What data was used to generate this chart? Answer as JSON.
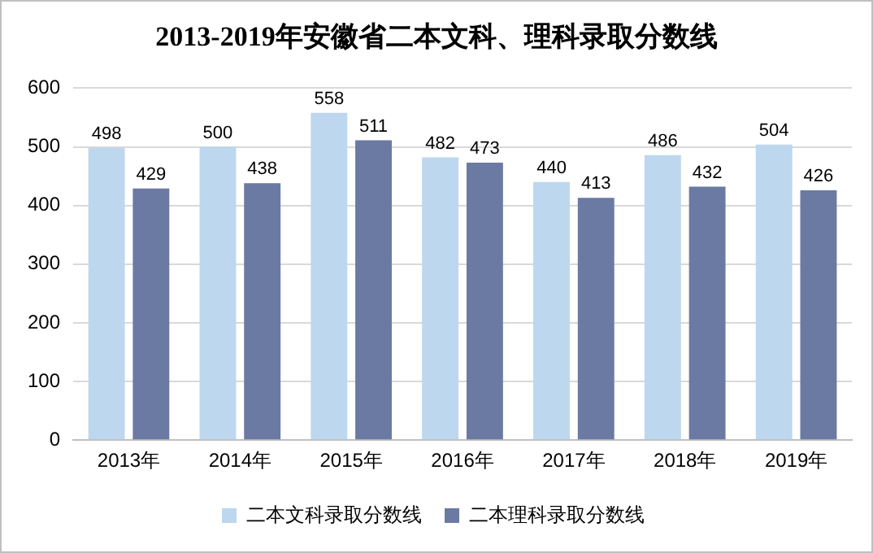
{
  "chart_data": {
    "type": "bar",
    "title": "2013-2019年安徽省二本文科、理科录取分数线",
    "categories": [
      "2013年",
      "2014年",
      "2015年",
      "2016年",
      "2017年",
      "2018年",
      "2019年"
    ],
    "series": [
      {
        "name": "二本文科录取分数线",
        "color": "#bdd7ee",
        "values": [
          498,
          500,
          558,
          482,
          440,
          486,
          504
        ]
      },
      {
        "name": "二本理科录取分数线",
        "color": "#6b7aa3",
        "values": [
          429,
          438,
          511,
          473,
          413,
          432,
          426
        ]
      }
    ],
    "ylim": [
      0,
      600
    ],
    "yticks": [
      0,
      100,
      200,
      300,
      400,
      500,
      600
    ],
    "grid": "y",
    "legend": "bottom",
    "data_labels": true
  }
}
